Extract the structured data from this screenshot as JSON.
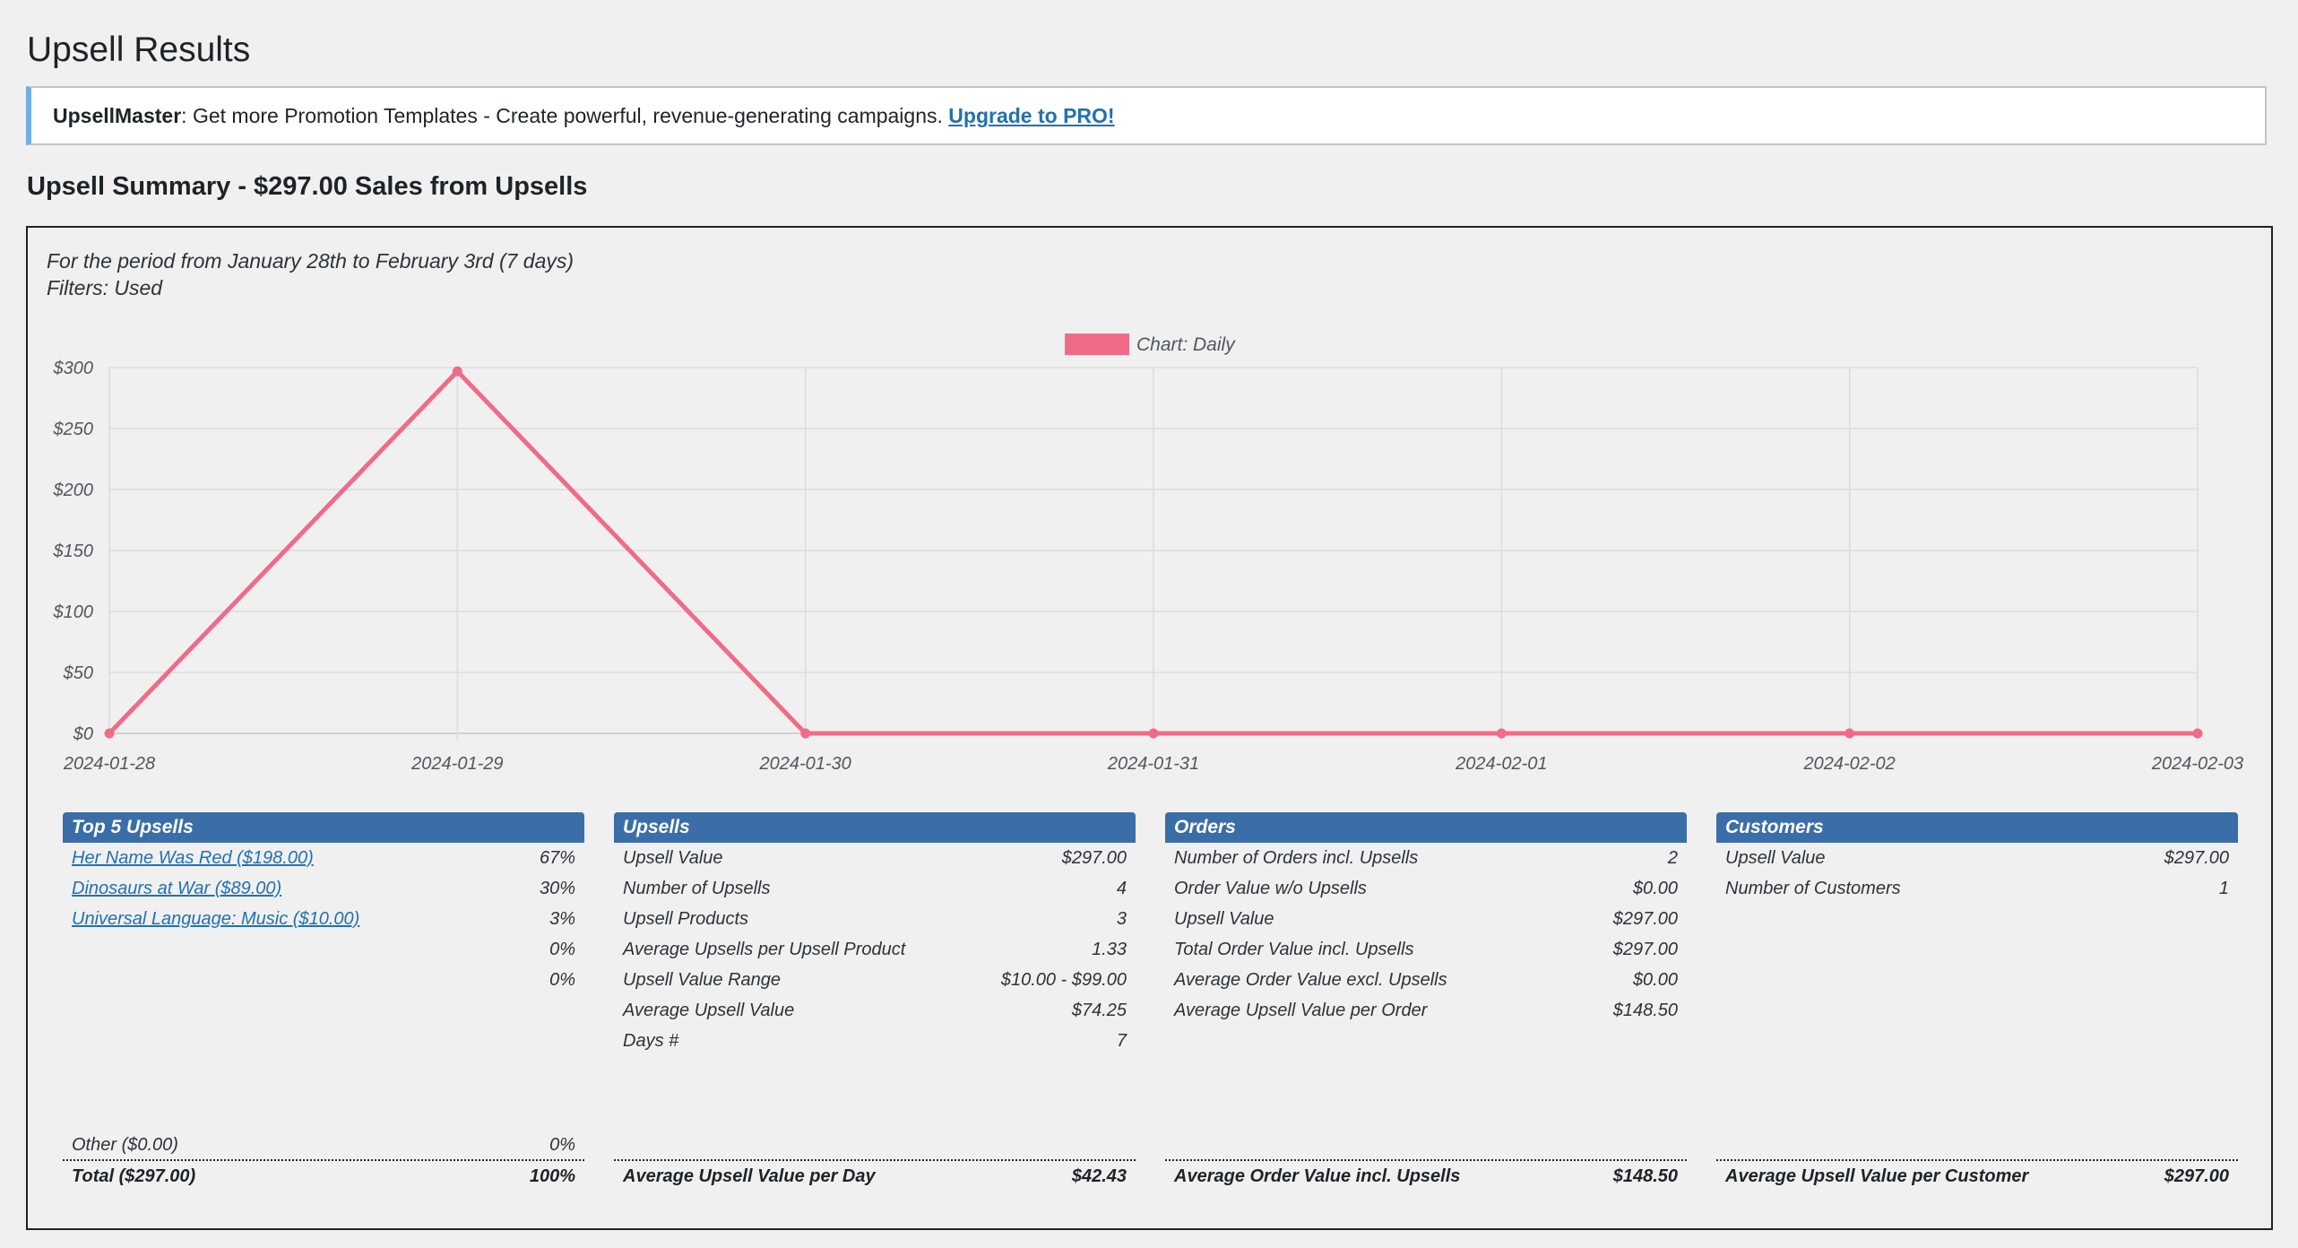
{
  "page": {
    "title": "Upsell Results"
  },
  "notice": {
    "brand": "UpsellMaster",
    "text": ": Get more Promotion Templates - Create powerful, revenue-generating campaigns. ",
    "link_label": "Upgrade to PRO!"
  },
  "summary": {
    "title": "Upsell Summary - $297.00 Sales from Upsells",
    "period": "For the period from January 28th to February 3rd (7 days)",
    "filters": "Filters: Used"
  },
  "chart_data": {
    "type": "line",
    "legend": "Chart: Daily",
    "legend_position": "top-center",
    "x": [
      "2024-01-28",
      "2024-01-29",
      "2024-01-30",
      "2024-01-31",
      "2024-02-01",
      "2024-02-02",
      "2024-02-03"
    ],
    "series": [
      {
        "name": "Chart: Daily",
        "values": [
          0,
          297,
          0,
          0,
          0,
          0,
          0
        ],
        "color": "#f06b88"
      }
    ],
    "y_ticks": [
      "$0",
      "$50",
      "$100",
      "$150",
      "$200",
      "$250",
      "$300"
    ],
    "ylim": [
      0,
      300
    ],
    "grid": true
  },
  "top5": {
    "header": "Top 5 Upsells",
    "items": [
      {
        "label": "Her Name Was Red ($198.00)",
        "value": "67%",
        "link": true
      },
      {
        "label": "Dinosaurs at War ($89.00)",
        "value": "30%",
        "link": true
      },
      {
        "label": "Universal Language: Music ($10.00)",
        "value": "3%",
        "link": true
      },
      {
        "label": "",
        "value": "0%",
        "link": false
      },
      {
        "label": "",
        "value": "0%",
        "link": false
      }
    ],
    "other_label": "Other  ($0.00)",
    "other_value": "0%",
    "total_label": "Total  ($297.00)",
    "total_value": "100%"
  },
  "upsells": {
    "header": "Upsells",
    "rows": [
      {
        "label": "Upsell Value",
        "value": "$297.00"
      },
      {
        "label": "Number of Upsells",
        "value": "4"
      },
      {
        "label": "Upsell Products",
        "value": "3"
      },
      {
        "label": "Average Upsells per Upsell Product",
        "value": "1.33"
      },
      {
        "label": "Upsell Value Range",
        "value": "$10.00 - $99.00"
      },
      {
        "label": "Average Upsell Value",
        "value": "$74.25"
      },
      {
        "label": "Days #",
        "value": "7"
      }
    ],
    "footer_label": "Average Upsell Value per Day",
    "footer_value": "$42.43"
  },
  "orders": {
    "header": "Orders",
    "rows": [
      {
        "label": "Number of Orders incl. Upsells",
        "value": "2"
      },
      {
        "label": "Order Value w/o Upsells",
        "value": "$0.00"
      },
      {
        "label": "Upsell Value",
        "value": "$297.00"
      },
      {
        "label": "Total Order Value incl. Upsells",
        "value": "$297.00"
      },
      {
        "label": "Average Order Value excl. Upsells",
        "value": "$0.00"
      },
      {
        "label": "Average Upsell Value per Order",
        "value": "$148.50"
      }
    ],
    "footer_label": "Average Order Value incl. Upsells",
    "footer_value": "$148.50"
  },
  "customers": {
    "header": "Customers",
    "rows": [
      {
        "label": "Upsell Value",
        "value": "$297.00"
      },
      {
        "label": "Number of Customers",
        "value": "1"
      }
    ],
    "footer_label": "Average Upsell Value per Customer",
    "footer_value": "$297.00"
  }
}
